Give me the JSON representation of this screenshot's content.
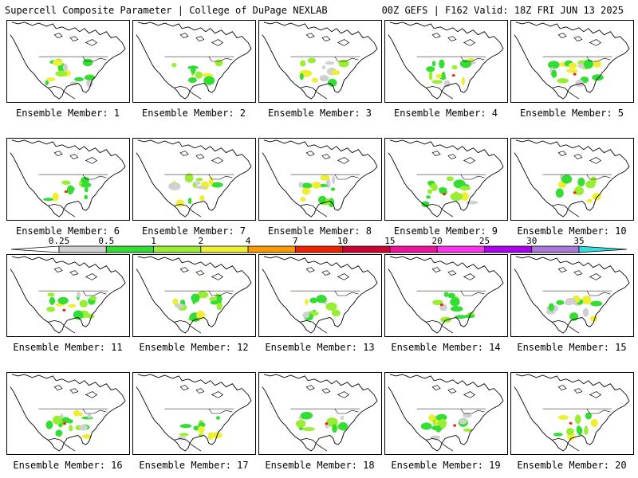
{
  "header": {
    "left": "Supercell Composite Parameter | College of DuPage NEXLAB",
    "right": "00Z GEFS | F162 Valid: 18Z FRI JUN 13 2025"
  },
  "colorbar": {
    "labels": [
      "0.25",
      "0.5",
      "1",
      "2",
      "4",
      "7",
      "10",
      "15",
      "20",
      "25",
      "30",
      "35"
    ],
    "colors": [
      "#d0d0d0",
      "#33dd33",
      "#99ee33",
      "#eeee33",
      "#ff9900",
      "#ee2200",
      "#cc0033",
      "#ee1199",
      "#ff33ee",
      "#aa00ee",
      "#aa77dd",
      "#33dddd"
    ]
  },
  "panels": [
    {
      "caption": "Ensemble Member: 1"
    },
    {
      "caption": "Ensemble Member: 2"
    },
    {
      "caption": "Ensemble Member: 3"
    },
    {
      "caption": "Ensemble Member: 4"
    },
    {
      "caption": "Ensemble Member: 5"
    },
    {
      "caption": "Ensemble Member: 6"
    },
    {
      "caption": "Ensemble Member: 7"
    },
    {
      "caption": "Ensemble Member: 8"
    },
    {
      "caption": "Ensemble Member: 9"
    },
    {
      "caption": "Ensemble Member: 10"
    },
    {
      "caption": "Ensemble Member: 11"
    },
    {
      "caption": "Ensemble Member: 12"
    },
    {
      "caption": "Ensemble Member: 13"
    },
    {
      "caption": "Ensemble Member: 14"
    },
    {
      "caption": "Ensemble Member: 15"
    },
    {
      "caption": "Ensemble Member: 16"
    },
    {
      "caption": "Ensemble Member: 17"
    },
    {
      "caption": "Ensemble Member: 18"
    },
    {
      "caption": "Ensemble Member: 19"
    },
    {
      "caption": "Ensemble Member: 20"
    }
  ]
}
